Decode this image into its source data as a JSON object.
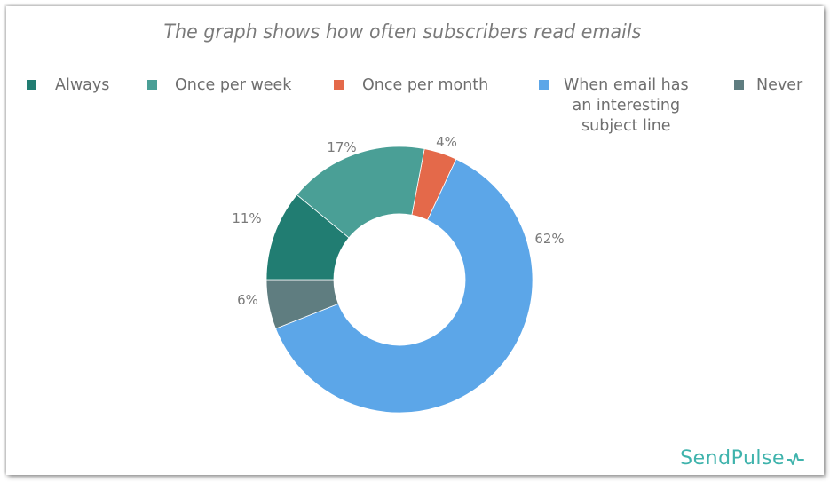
{
  "chart_data": {
    "type": "pie",
    "variant": "donut",
    "title": "The graph shows how often subscribers read emails",
    "categories": [
      "Always",
      "Once per week",
      "Once per month",
      "When email has an interesting subject line",
      "Never"
    ],
    "values": [
      11,
      17,
      4,
      62,
      6
    ],
    "unit": "%",
    "colors": [
      "#217d72",
      "#4a9f96",
      "#e4694a",
      "#5ca6e8",
      "#5f7d80"
    ],
    "data_labels": [
      "11%",
      "17%",
      "4%",
      "62%",
      "6%"
    ],
    "legend_position": "top",
    "slice_order_clockwise_from_top": [
      "Once per month",
      "When email has an interesting subject line",
      "Never",
      "Always",
      "Once per week"
    ]
  },
  "title": "The graph shows how often subscribers read emails",
  "legend": [
    {
      "label": "Always",
      "color": "#217d72"
    },
    {
      "label": "Once per week",
      "color": "#4a9f96"
    },
    {
      "label": "Once per month",
      "color": "#e4694a"
    },
    {
      "label_lines": [
        "When email has",
        "an interesting",
        "subject line"
      ],
      "label": "When email has an interesting subject line",
      "color": "#5ca6e8"
    },
    {
      "label": "Never",
      "color": "#5f7d80"
    }
  ],
  "labels": {
    "always": "11%",
    "week": "17%",
    "month": "4%",
    "subject": "62%",
    "never": "6%"
  },
  "brand": {
    "name": "SendPulse",
    "color": "#3fb3ac",
    "icon": "pulse-icon"
  }
}
